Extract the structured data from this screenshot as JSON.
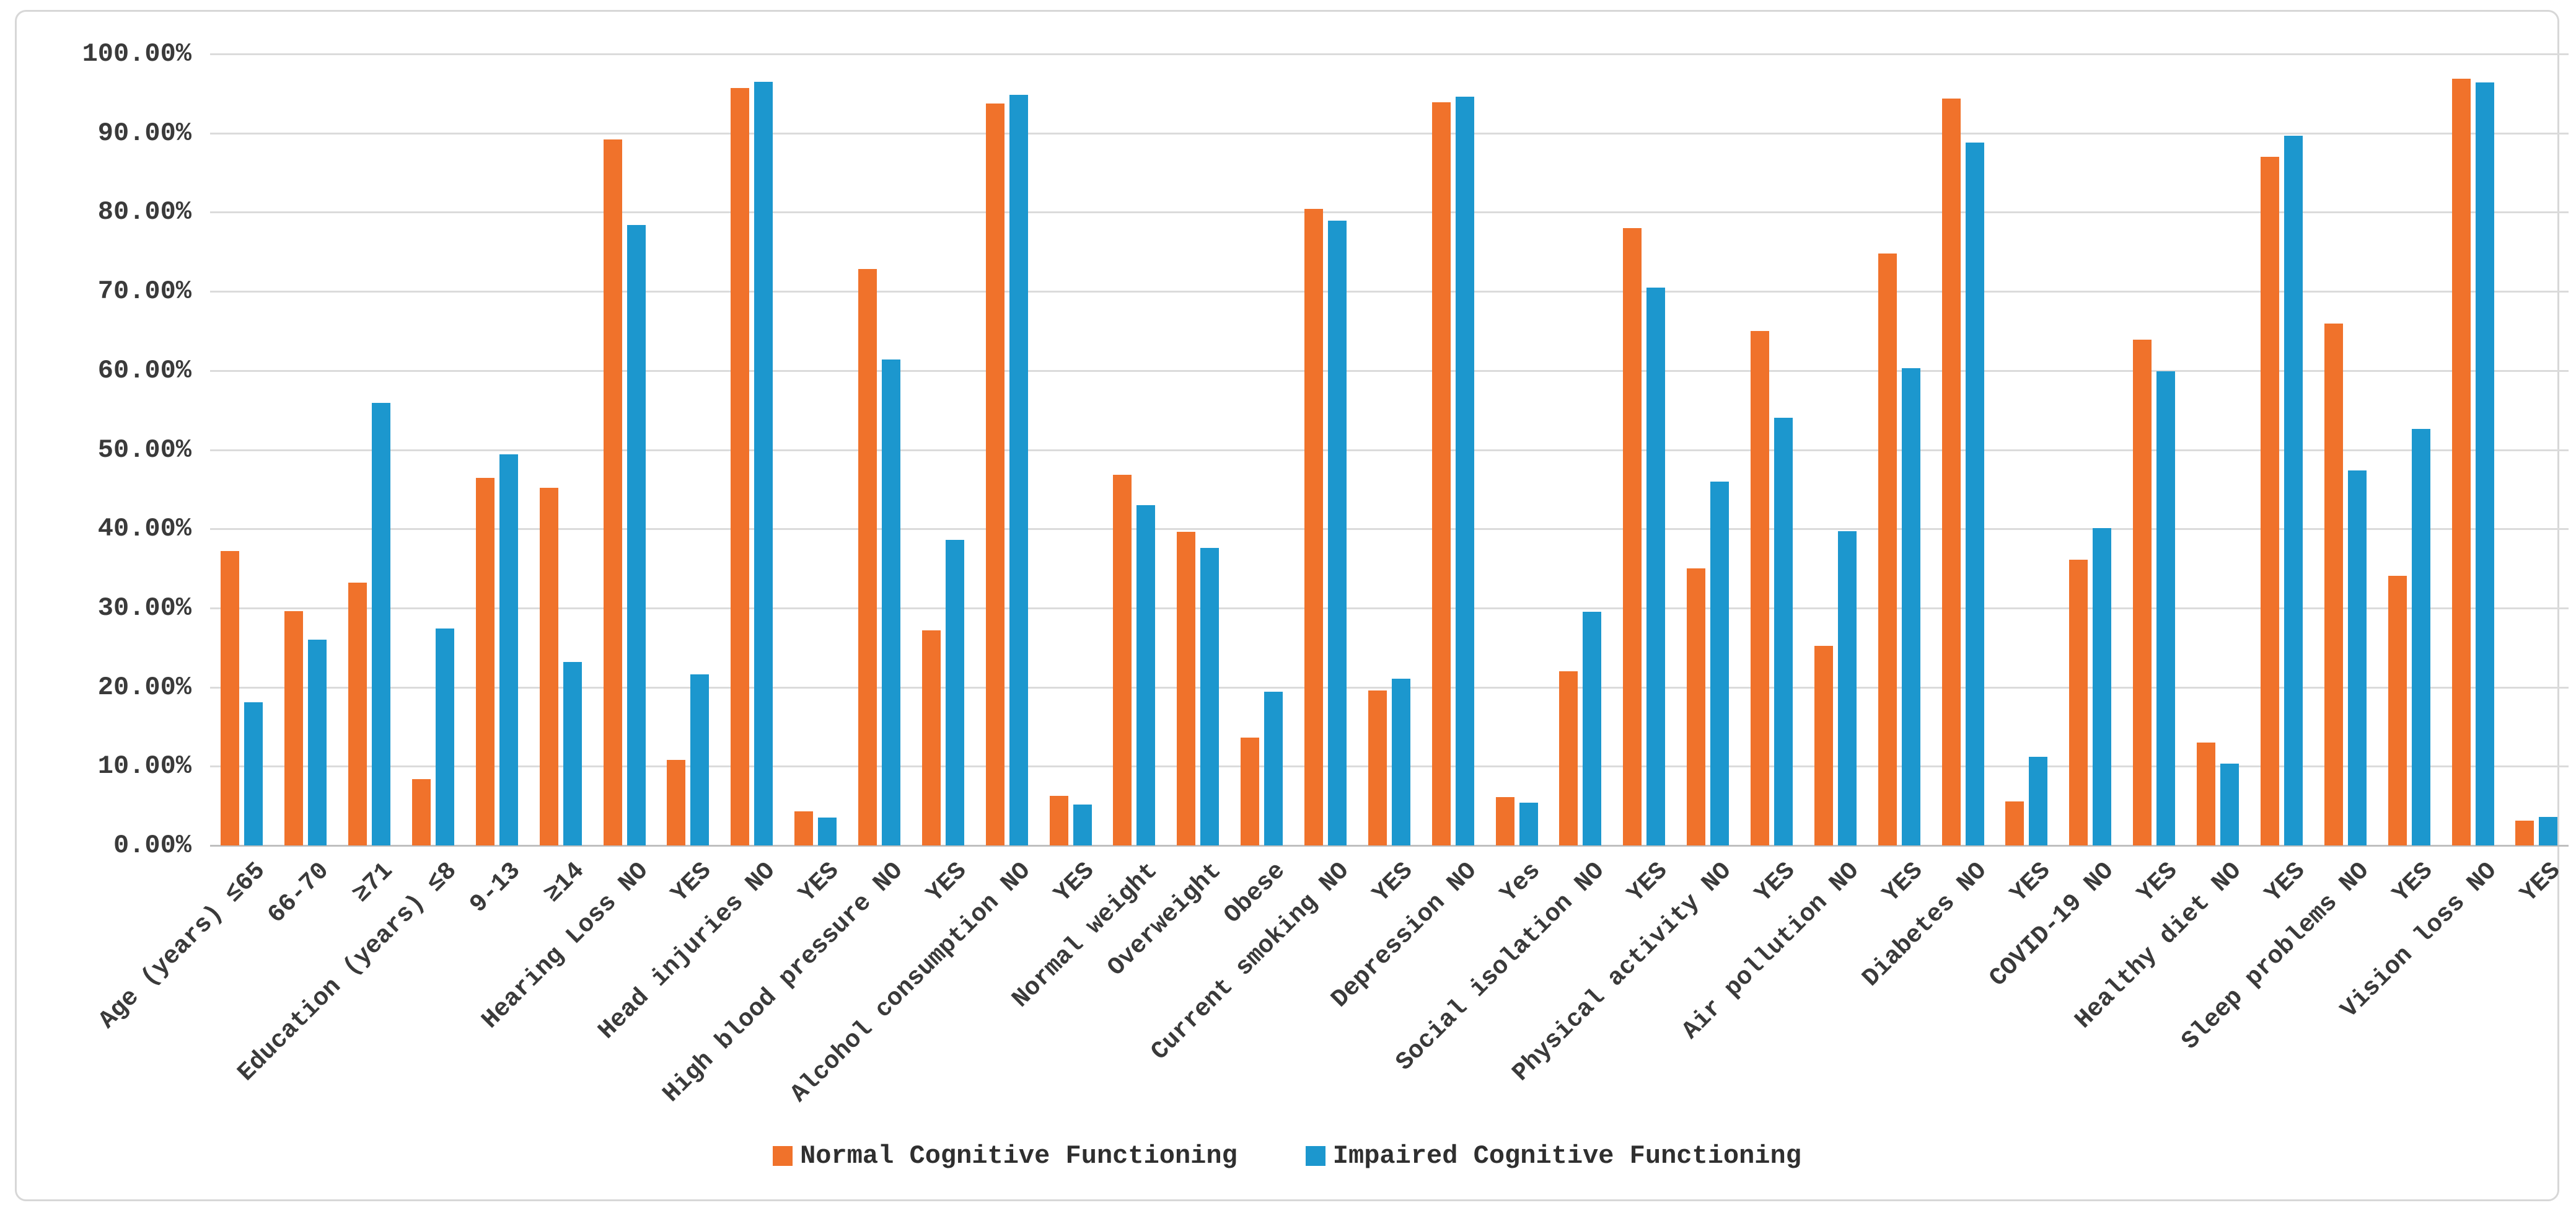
{
  "figure": {
    "background_color": "#ffffff",
    "frame_border_color": "#d7d7d7",
    "gridline_color": "#dbdbdb",
    "axis_line_color": "#bfbfbf",
    "text_color": "#3a3a3a"
  },
  "chart_data": {
    "type": "bar",
    "title": "",
    "xlabel": "",
    "ylabel": "",
    "ylim": [
      0,
      100
    ],
    "ytick_step": 10,
    "grid": "horizontal-only",
    "legend_position": "bottom-center",
    "yticks": [
      "100.00%",
      "90.00%",
      "80.00%",
      "70.00%",
      "60.00%",
      "50.00%",
      "40.00%",
      "30.00%",
      "20.00%",
      "10.00%",
      "0.00%"
    ],
    "categories": [
      "Age (years) ≤65",
      "66-70",
      "≥71",
      "Education (years) ≤8",
      "9-13",
      "≥14",
      "Hearing Loss NO",
      "YES",
      "Head injuries NO",
      "YES",
      "High blood pressure NO",
      "YES",
      "Alcohol consumption NO",
      "YES",
      "Normal weight",
      "Overweight",
      "Obese",
      "Current smoking NO",
      "YES",
      "Depression NO",
      "Yes",
      "Social isolation NO",
      "YES",
      "Physical activity NO",
      "YES",
      "Air pollution NO",
      "YES",
      "Diabetes NO",
      "YES",
      "COVID-19 NO",
      "YES",
      "Healthy diet NO",
      "YES",
      "Sleep problems NO",
      "YES",
      "Vision loss NO",
      "YES"
    ],
    "series": [
      {
        "name": "Normal Cognitive Functioning",
        "color": "#f0722b",
        "values": [
          37.2,
          29.6,
          33.2,
          8.4,
          46.4,
          45.2,
          89.2,
          10.8,
          95.7,
          4.3,
          72.8,
          27.2,
          93.7,
          6.3,
          46.8,
          39.6,
          13.6,
          80.4,
          19.6,
          93.9,
          6.1,
          22.0,
          78.0,
          35.0,
          65.0,
          25.2,
          74.8,
          94.4,
          5.6,
          36.1,
          63.9,
          13.0,
          87.0,
          65.9,
          34.1,
          96.9,
          3.1
        ]
      },
      {
        "name": "Impaired Cognitive Functioning",
        "color": "#1c97ce",
        "values": [
          18.1,
          26.0,
          55.9,
          27.4,
          49.4,
          23.2,
          78.4,
          21.6,
          96.5,
          3.5,
          61.4,
          38.6,
          94.8,
          5.2,
          43.0,
          37.6,
          19.4,
          78.9,
          21.1,
          94.6,
          5.4,
          29.5,
          70.5,
          46.0,
          54.0,
          39.7,
          60.3,
          88.8,
          11.2,
          40.1,
          59.9,
          10.3,
          89.7,
          47.4,
          52.6,
          96.4,
          3.6
        ]
      }
    ]
  }
}
